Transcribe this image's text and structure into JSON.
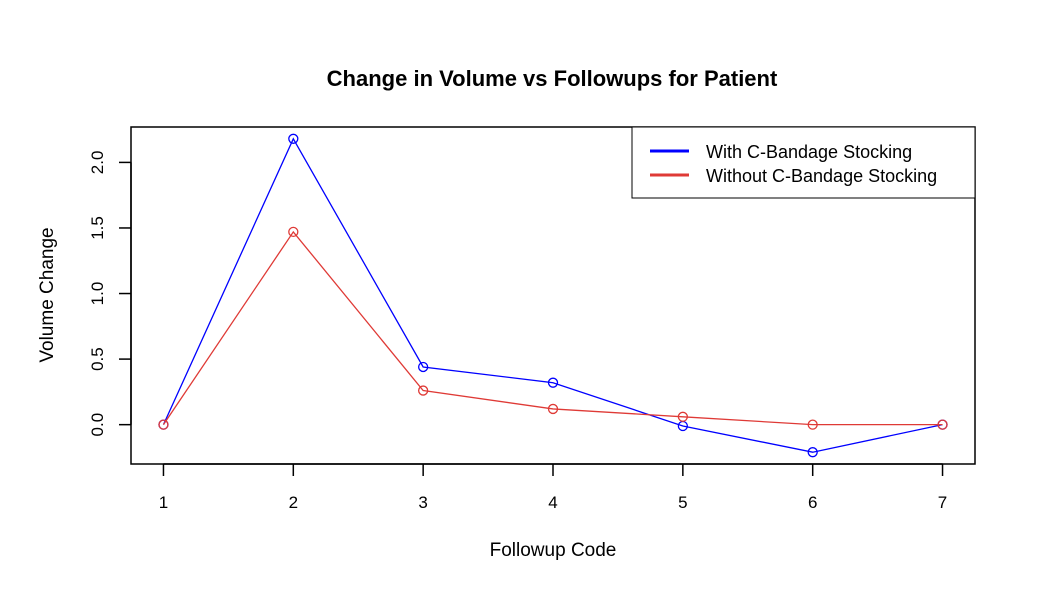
{
  "chart_data": {
    "type": "line",
    "title": "Change in Volume vs Followups for Patient",
    "xlabel": "Followup Code",
    "ylabel": "Volume Change",
    "x": [
      1,
      2,
      3,
      4,
      5,
      6,
      7
    ],
    "xlim": [
      0.75,
      7.25
    ],
    "ylim": [
      -0.3,
      2.27
    ],
    "xticks": [
      "1",
      "2",
      "3",
      "4",
      "5",
      "6",
      "7"
    ],
    "yticks": [
      "0.0",
      "0.5",
      "1.0",
      "1.5",
      "2.0"
    ],
    "grid": false,
    "legend_position": "top-right",
    "series": [
      {
        "name": "With C-Bandage Stocking",
        "color": "#0000ff",
        "marker": "open-circle",
        "values": [
          0.0,
          2.18,
          0.44,
          0.32,
          -0.01,
          -0.21,
          0.0
        ]
      },
      {
        "name": "Without C-Bandage Stocking",
        "color": "#df3a36",
        "marker": "open-circle",
        "values": [
          0.0,
          1.47,
          0.26,
          0.12,
          0.06,
          0.0,
          0.0
        ]
      }
    ]
  }
}
